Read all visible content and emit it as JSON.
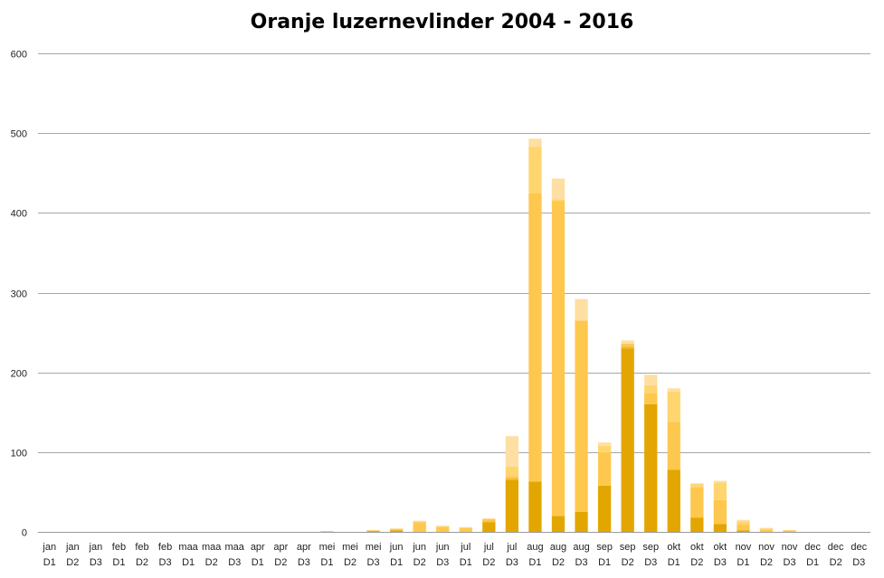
{
  "chart_data": {
    "type": "bar",
    "stacked": true,
    "title": "Oranje luzernevlinder 2004 - 2016",
    "xlabel": "",
    "ylabel": "",
    "ylim": [
      0,
      600
    ],
    "yticks": [
      0,
      100,
      200,
      300,
      400,
      500,
      600
    ],
    "grid": true,
    "legend": "none",
    "categories": [
      {
        "month": "jan",
        "dec": "D1"
      },
      {
        "month": "jan",
        "dec": "D2"
      },
      {
        "month": "jan",
        "dec": "D3"
      },
      {
        "month": "feb",
        "dec": "D1"
      },
      {
        "month": "feb",
        "dec": "D2"
      },
      {
        "month": "feb",
        "dec": "D3"
      },
      {
        "month": "maa",
        "dec": "D1"
      },
      {
        "month": "maa",
        "dec": "D2"
      },
      {
        "month": "maa",
        "dec": "D3"
      },
      {
        "month": "apr",
        "dec": "D1"
      },
      {
        "month": "apr",
        "dec": "D2"
      },
      {
        "month": "apr",
        "dec": "D3"
      },
      {
        "month": "mei",
        "dec": "D1"
      },
      {
        "month": "mei",
        "dec": "D2"
      },
      {
        "month": "mei",
        "dec": "D3"
      },
      {
        "month": "jun",
        "dec": "D1"
      },
      {
        "month": "jun",
        "dec": "D2"
      },
      {
        "month": "jun",
        "dec": "D3"
      },
      {
        "month": "jul",
        "dec": "D1"
      },
      {
        "month": "jul",
        "dec": "D2"
      },
      {
        "month": "jul",
        "dec": "D3"
      },
      {
        "month": "aug",
        "dec": "D1"
      },
      {
        "month": "aug",
        "dec": "D2"
      },
      {
        "month": "aug",
        "dec": "D3"
      },
      {
        "month": "sep",
        "dec": "D1"
      },
      {
        "month": "sep",
        "dec": "D2"
      },
      {
        "month": "sep",
        "dec": "D3"
      },
      {
        "month": "okt",
        "dec": "D1"
      },
      {
        "month": "okt",
        "dec": "D2"
      },
      {
        "month": "okt",
        "dec": "D3"
      },
      {
        "month": "nov",
        "dec": "D1"
      },
      {
        "month": "nov",
        "dec": "D2"
      },
      {
        "month": "nov",
        "dec": "D3"
      },
      {
        "month": "dec",
        "dec": "D1"
      },
      {
        "month": "dec",
        "dec": "D2"
      },
      {
        "month": "dec",
        "dec": "D3"
      }
    ],
    "series": [
      {
        "color": "#e3a600",
        "values": [
          0,
          0,
          0,
          0,
          0,
          0,
          0,
          0,
          0,
          0,
          0,
          0,
          0,
          0,
          1,
          2,
          0,
          0,
          0,
          12,
          65,
          63,
          20,
          25,
          58,
          230,
          160,
          78,
          18,
          10,
          2,
          0,
          0,
          0,
          0,
          0
        ]
      },
      {
        "color": "#f3b42b",
        "values": [
          0,
          0,
          0,
          0,
          0,
          0,
          0,
          0,
          0,
          0,
          0,
          0,
          0,
          0,
          0,
          0,
          0,
          0,
          0,
          1,
          2,
          0,
          0,
          0,
          0,
          2,
          0,
          0,
          0,
          0,
          0,
          0,
          0,
          0,
          0,
          0
        ]
      },
      {
        "color": "#fec84e",
        "values": [
          0,
          0,
          0,
          0,
          0,
          0,
          0,
          0,
          0,
          0,
          0,
          0,
          1,
          0,
          1,
          2,
          12,
          6,
          5,
          3,
          3,
          362,
          395,
          240,
          42,
          4,
          14,
          60,
          38,
          30,
          7,
          3,
          2,
          0,
          0,
          0
        ]
      },
      {
        "color": "#ffd56f",
        "values": [
          0,
          0,
          0,
          0,
          0,
          0,
          0,
          0,
          0,
          0,
          0,
          0,
          0,
          0,
          0,
          0,
          1,
          1,
          0,
          0,
          12,
          58,
          2,
          0,
          8,
          0,
          10,
          38,
          4,
          22,
          4,
          1,
          0,
          0,
          0,
          0
        ]
      },
      {
        "color": "#fedfa3",
        "values": [
          0,
          0,
          0,
          0,
          0,
          0,
          0,
          0,
          0,
          0,
          0,
          0,
          0,
          0,
          0,
          0,
          1,
          1,
          1,
          1,
          38,
          10,
          26,
          27,
          4,
          4,
          13,
          4,
          1,
          2,
          2,
          1,
          0,
          0,
          0,
          0
        ]
      }
    ]
  }
}
